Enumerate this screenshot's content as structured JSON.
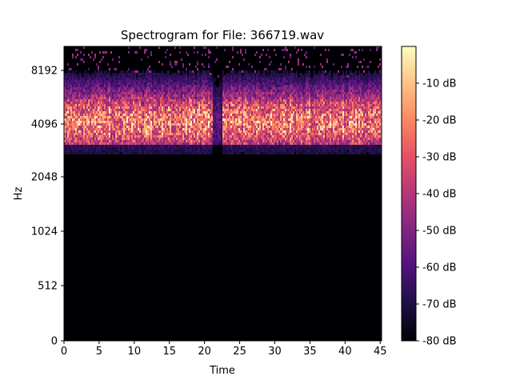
{
  "chart_data": {
    "type": "heatmap",
    "title": "Spectrogram for File: 366719.wav",
    "xlabel": "Time",
    "ylabel": "Hz",
    "x_ticks": [
      0,
      5,
      10,
      15,
      20,
      25,
      30,
      35,
      40,
      45
    ],
    "x_range": [
      0,
      45.2
    ],
    "y_scale": "log",
    "y_ticks": [
      {
        "value": 0,
        "label": "0"
      },
      {
        "value": 512,
        "label": "512"
      },
      {
        "value": 1024,
        "label": "1024"
      },
      {
        "value": 2048,
        "label": "2048"
      },
      {
        "value": 4096,
        "label": "4096"
      },
      {
        "value": 8192,
        "label": "8192"
      }
    ],
    "colorbar": {
      "range": [
        -80,
        0
      ],
      "ticks": [
        {
          "value": -10,
          "label": "-10 dB"
        },
        {
          "value": -20,
          "label": "-20 dB"
        },
        {
          "value": -30,
          "label": "-30 dB"
        },
        {
          "value": -40,
          "label": "-40 dB"
        },
        {
          "value": -50,
          "label": "-50 dB"
        },
        {
          "value": -60,
          "label": "-60 dB"
        },
        {
          "value": -70,
          "label": "-70 dB"
        },
        {
          "value": -80,
          "label": "-80 dB"
        }
      ],
      "colormap": "magma",
      "colormap_stops": [
        "#000004",
        "#1c1044",
        "#4f127b",
        "#812581",
        "#b5367a",
        "#e55064",
        "#fb8761",
        "#fec287",
        "#fcfdbf"
      ]
    },
    "energy_band_hz": [
      3000,
      9000
    ],
    "energy_peak_hz": 4300,
    "quiet_gap_time": [
      21,
      22.5
    ],
    "grid": false,
    "legend": "none"
  }
}
